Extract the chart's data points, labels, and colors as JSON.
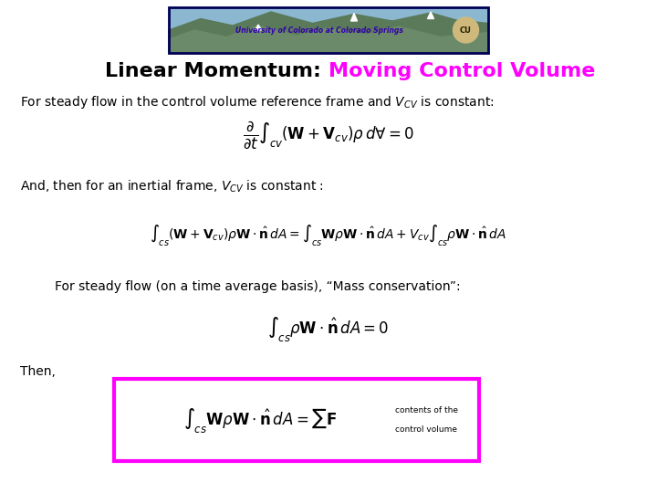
{
  "title_black": "Linear Momentum: ",
  "title_magenta": "Moving Control Volume",
  "title_fontsize": 16,
  "bg_color": "#ffffff",
  "text_color": "#000000",
  "magenta_color": "#ff00ff",
  "box_color": "#ff00ff",
  "line1": "For steady flow in the control volume reference frame and $V_{CV}$ is constant:",
  "line2": "And, then for an inertial frame, $V_{CV}$ is constant :",
  "line3": "For steady flow (on a time average basis), “Mass conservation”:",
  "line4": "Then,",
  "text_fontsize": 10,
  "eq1_fontsize": 12,
  "eq2_fontsize": 10,
  "eq3_fontsize": 12,
  "eq4_fontsize": 12
}
